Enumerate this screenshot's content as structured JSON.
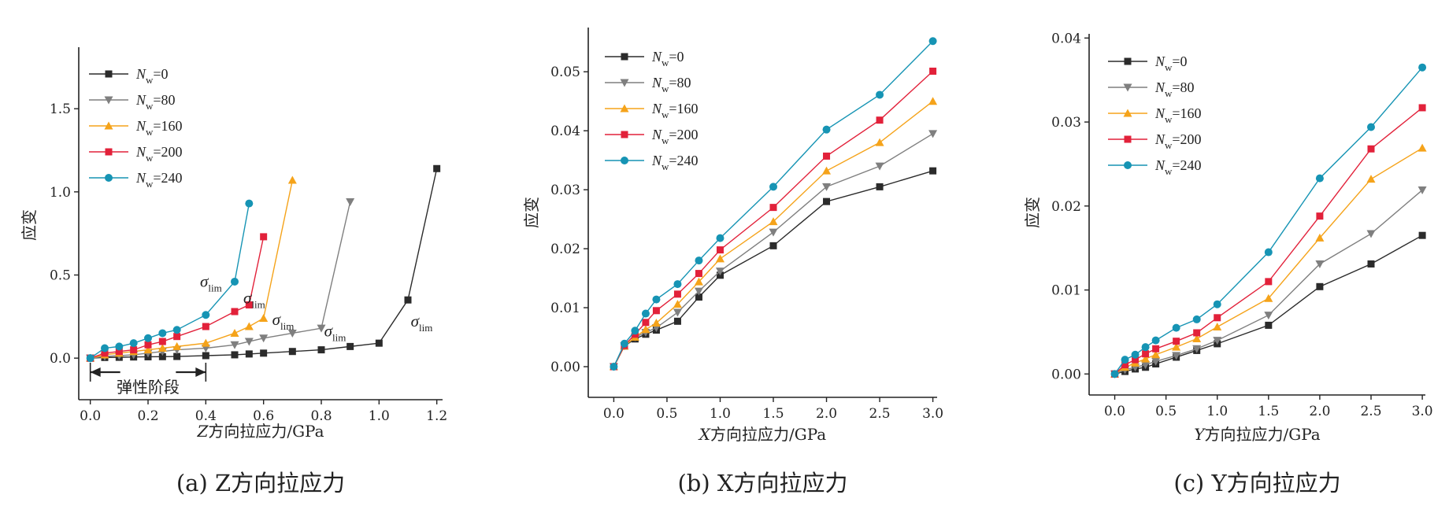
{
  "colors": {
    "Nw=0": "#2b2b2b",
    "Nw=80": "#7f7f7f",
    "Nw=160": "#f5a31a",
    "Nw=200": "#e2213a",
    "Nw=240": "#1694b4",
    "axis": "#222222"
  },
  "legend_symbol": "N",
  "legend_subscript": "w",
  "annotation_symbol": "σ",
  "annotation_subscript": "lim",
  "chart_data": [
    {
      "type": "line",
      "panel": "a",
      "caption": "(a) Z方向拉应力",
      "xlabel": "Z方向拉应力/GPa",
      "ylabel": "应变",
      "xlim": [
        -0.04,
        1.22
      ],
      "ylim": [
        -0.25,
        1.87
      ],
      "xticks": [
        "0.0",
        "0.2",
        "0.4",
        "0.6",
        "0.8",
        "1.0",
        "1.2"
      ],
      "xtick_values": [
        0,
        0.2,
        0.4,
        0.6,
        0.8,
        1.0,
        1.2
      ],
      "yticks": [
        "0.0",
        "0.5",
        "1.0",
        "1.5"
      ],
      "ytick_values": [
        0,
        0.5,
        1.0,
        1.5
      ],
      "elastic_stage_label": "弹性阶段",
      "elastic_stage_range": [
        0,
        0.4
      ],
      "series": [
        {
          "name": "=0",
          "key": "Nw=0",
          "marker": "square",
          "x": [
            0,
            0.05,
            0.1,
            0.15,
            0.2,
            0.25,
            0.3,
            0.4,
            0.5,
            0.55,
            0.6,
            0.7,
            0.8,
            0.9,
            1.0,
            1.1,
            1.2
          ],
          "y": [
            0,
            0.004,
            0.005,
            0.007,
            0.008,
            0.009,
            0.01,
            0.015,
            0.02,
            0.025,
            0.03,
            0.04,
            0.05,
            0.07,
            0.09,
            0.35,
            1.14
          ]
        },
        {
          "name": "=80",
          "key": "Nw=80",
          "marker": "triangle-down",
          "x": [
            0,
            0.05,
            0.1,
            0.15,
            0.2,
            0.25,
            0.3,
            0.4,
            0.5,
            0.55,
            0.6,
            0.7,
            0.8,
            0.9
          ],
          "y": [
            0,
            0.01,
            0.015,
            0.02,
            0.03,
            0.04,
            0.05,
            0.06,
            0.08,
            0.1,
            0.12,
            0.15,
            0.18,
            0.94
          ]
        },
        {
          "name": "=160",
          "key": "Nw=160",
          "marker": "triangle-up",
          "x": [
            0,
            0.05,
            0.1,
            0.15,
            0.2,
            0.25,
            0.3,
            0.4,
            0.5,
            0.55,
            0.6,
            0.7
          ],
          "y": [
            0,
            0.02,
            0.03,
            0.04,
            0.05,
            0.06,
            0.07,
            0.09,
            0.15,
            0.19,
            0.24,
            1.07
          ]
        },
        {
          "name": "=200",
          "key": "Nw=200",
          "marker": "square",
          "x": [
            0,
            0.05,
            0.1,
            0.15,
            0.2,
            0.25,
            0.3,
            0.4,
            0.5,
            0.55,
            0.6
          ],
          "y": [
            0,
            0.03,
            0.04,
            0.05,
            0.08,
            0.1,
            0.13,
            0.19,
            0.28,
            0.32,
            0.73
          ]
        },
        {
          "name": "=240",
          "key": "Nw=240",
          "marker": "circle",
          "x": [
            0,
            0.05,
            0.1,
            0.15,
            0.2,
            0.25,
            0.3,
            0.4,
            0.5,
            0.55
          ],
          "y": [
            0,
            0.06,
            0.07,
            0.09,
            0.12,
            0.15,
            0.17,
            0.26,
            0.46,
            0.93
          ]
        }
      ],
      "annotations": [
        {
          "x": 0.38,
          "y": 0.43
        },
        {
          "x": 0.53,
          "y": 0.33
        },
        {
          "x": 0.63,
          "y": 0.2
        },
        {
          "x": 0.81,
          "y": 0.13
        },
        {
          "x": 1.11,
          "y": 0.19
        }
      ]
    },
    {
      "type": "line",
      "panel": "b",
      "caption": "(b) X方向拉应力",
      "xlabel": "X方向拉应力/GPa",
      "ylabel": "应变",
      "xlim": [
        -0.24,
        3.04
      ],
      "ylim": [
        -0.0052,
        0.0575
      ],
      "xticks": [
        "0.0",
        "0.5",
        "1.0",
        "1.5",
        "2.0",
        "2.5",
        "3.0"
      ],
      "xtick_values": [
        0,
        0.5,
        1.0,
        1.5,
        2.0,
        2.5,
        3.0
      ],
      "yticks": [
        "0.00",
        "0.01",
        "0.02",
        "0.03",
        "0.04",
        "0.05"
      ],
      "ytick_values": [
        0,
        0.01,
        0.02,
        0.03,
        0.04,
        0.05
      ],
      "series": [
        {
          "name": "=0",
          "key": "Nw=0",
          "marker": "square",
          "x": [
            0,
            0.1,
            0.2,
            0.3,
            0.4,
            0.6,
            0.8,
            1.0,
            1.5,
            2.0,
            2.5,
            3.0
          ],
          "y": [
            0,
            0.0035,
            0.0047,
            0.0055,
            0.0062,
            0.0077,
            0.0118,
            0.0155,
            0.0205,
            0.028,
            0.0305,
            0.0332
          ]
        },
        {
          "name": "=80",
          "key": "Nw=80",
          "marker": "triangle-down",
          "x": [
            0,
            0.1,
            0.2,
            0.3,
            0.4,
            0.6,
            0.8,
            1.0,
            1.5,
            2.0,
            2.5,
            3.0
          ],
          "y": [
            0,
            0.0035,
            0.005,
            0.0058,
            0.0066,
            0.0092,
            0.0128,
            0.0162,
            0.0228,
            0.0305,
            0.034,
            0.0395
          ]
        },
        {
          "name": "=160",
          "key": "Nw=160",
          "marker": "triangle-up",
          "x": [
            0,
            0.1,
            0.2,
            0.3,
            0.4,
            0.6,
            0.8,
            1.0,
            1.5,
            2.0,
            2.5,
            3.0
          ],
          "y": [
            0,
            0.0035,
            0.005,
            0.0063,
            0.0074,
            0.0106,
            0.0144,
            0.0183,
            0.0246,
            0.0332,
            0.038,
            0.045
          ]
        },
        {
          "name": "=200",
          "key": "Nw=200",
          "marker": "square",
          "x": [
            0,
            0.1,
            0.2,
            0.3,
            0.4,
            0.6,
            0.8,
            1.0,
            1.5,
            2.0,
            2.5,
            3.0
          ],
          "y": [
            0,
            0.0036,
            0.0055,
            0.0075,
            0.0095,
            0.0123,
            0.0158,
            0.0198,
            0.027,
            0.0357,
            0.0418,
            0.0501
          ]
        },
        {
          "name": "=240",
          "key": "Nw=240",
          "marker": "circle",
          "x": [
            0,
            0.1,
            0.2,
            0.3,
            0.4,
            0.6,
            0.8,
            1.0,
            1.5,
            2.0,
            2.5,
            3.0
          ],
          "y": [
            0,
            0.0039,
            0.0061,
            0.009,
            0.0114,
            0.014,
            0.018,
            0.0218,
            0.0305,
            0.0402,
            0.0461,
            0.0552
          ]
        }
      ]
    },
    {
      "type": "line",
      "panel": "c",
      "caption": "(c) Y方向拉应力",
      "xlabel": "Y方向拉应力/GPa",
      "ylabel": "应变",
      "xlim": [
        -0.25,
        3.03
      ],
      "ylim": [
        -0.0025,
        0.0405
      ],
      "xticks": [
        "0.0",
        "0.5",
        "1.0",
        "1.5",
        "2.0",
        "2.5",
        "3.0"
      ],
      "xtick_values": [
        0,
        0.5,
        1.0,
        1.5,
        2.0,
        2.5,
        3.0
      ],
      "yticks": [
        "0.00",
        "0.01",
        "0.02",
        "0.03",
        "0.04"
      ],
      "ytick_values": [
        0,
        0.01,
        0.02,
        0.03,
        0.04
      ],
      "series": [
        {
          "name": "=0",
          "key": "Nw=0",
          "marker": "square",
          "x": [
            0,
            0.1,
            0.2,
            0.3,
            0.4,
            0.6,
            0.8,
            1.0,
            1.5,
            2.0,
            2.5,
            3.0
          ],
          "y": [
            0,
            0.0003,
            0.0006,
            0.0008,
            0.0012,
            0.002,
            0.0028,
            0.0036,
            0.0058,
            0.0104,
            0.0131,
            0.0165
          ]
        },
        {
          "name": "=80",
          "key": "Nw=80",
          "marker": "triangle-down",
          "x": [
            0,
            0.1,
            0.2,
            0.3,
            0.4,
            0.6,
            0.8,
            1.0,
            1.5,
            2.0,
            2.5,
            3.0
          ],
          "y": [
            0,
            0.0005,
            0.0008,
            0.0011,
            0.0015,
            0.0022,
            0.003,
            0.004,
            0.007,
            0.0131,
            0.0167,
            0.0219
          ]
        },
        {
          "name": "=160",
          "key": "Nw=160",
          "marker": "triangle-up",
          "x": [
            0,
            0.1,
            0.2,
            0.3,
            0.4,
            0.6,
            0.8,
            1.0,
            1.5,
            2.0,
            2.5,
            3.0
          ],
          "y": [
            0,
            0.0008,
            0.0013,
            0.0018,
            0.0023,
            0.0032,
            0.0042,
            0.0056,
            0.009,
            0.0162,
            0.0232,
            0.0269
          ]
        },
        {
          "name": "=200",
          "key": "Nw=200",
          "marker": "square",
          "x": [
            0,
            0.1,
            0.2,
            0.3,
            0.4,
            0.6,
            0.8,
            1.0,
            1.5,
            2.0,
            2.5,
            3.0
          ],
          "y": [
            0,
            0.0011,
            0.0017,
            0.0024,
            0.003,
            0.0039,
            0.0049,
            0.0067,
            0.011,
            0.0188,
            0.0268,
            0.0317
          ]
        },
        {
          "name": "=240",
          "key": "Nw=240",
          "marker": "circle",
          "x": [
            0,
            0.1,
            0.2,
            0.3,
            0.4,
            0.6,
            0.8,
            1.0,
            1.5,
            2.0,
            2.5,
            3.0
          ],
          "y": [
            0,
            0.0017,
            0.0023,
            0.0032,
            0.004,
            0.0055,
            0.0065,
            0.0083,
            0.0145,
            0.0233,
            0.0294,
            0.0365
          ]
        }
      ]
    }
  ]
}
